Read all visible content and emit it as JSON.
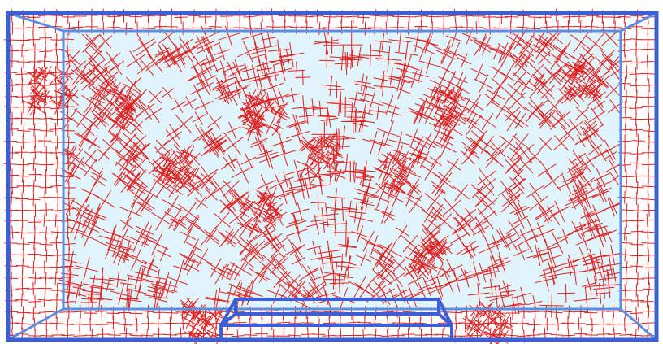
{
  "figure": {
    "kind": "cross-field visualization over a box-shaped domain",
    "colors": {
      "background": "#ffffff",
      "inner_fill": "#dff5fb",
      "outer_wireframe": "#3d5fd6",
      "inner_wireframe": "#5b8ee0",
      "cross_field": "#e02020"
    },
    "element_names": [
      "outer-box-frame",
      "inner-box-frame",
      "inner-face-fill",
      "bottom-step-feature",
      "cross-field-strokes",
      "singularity-cluster"
    ]
  }
}
